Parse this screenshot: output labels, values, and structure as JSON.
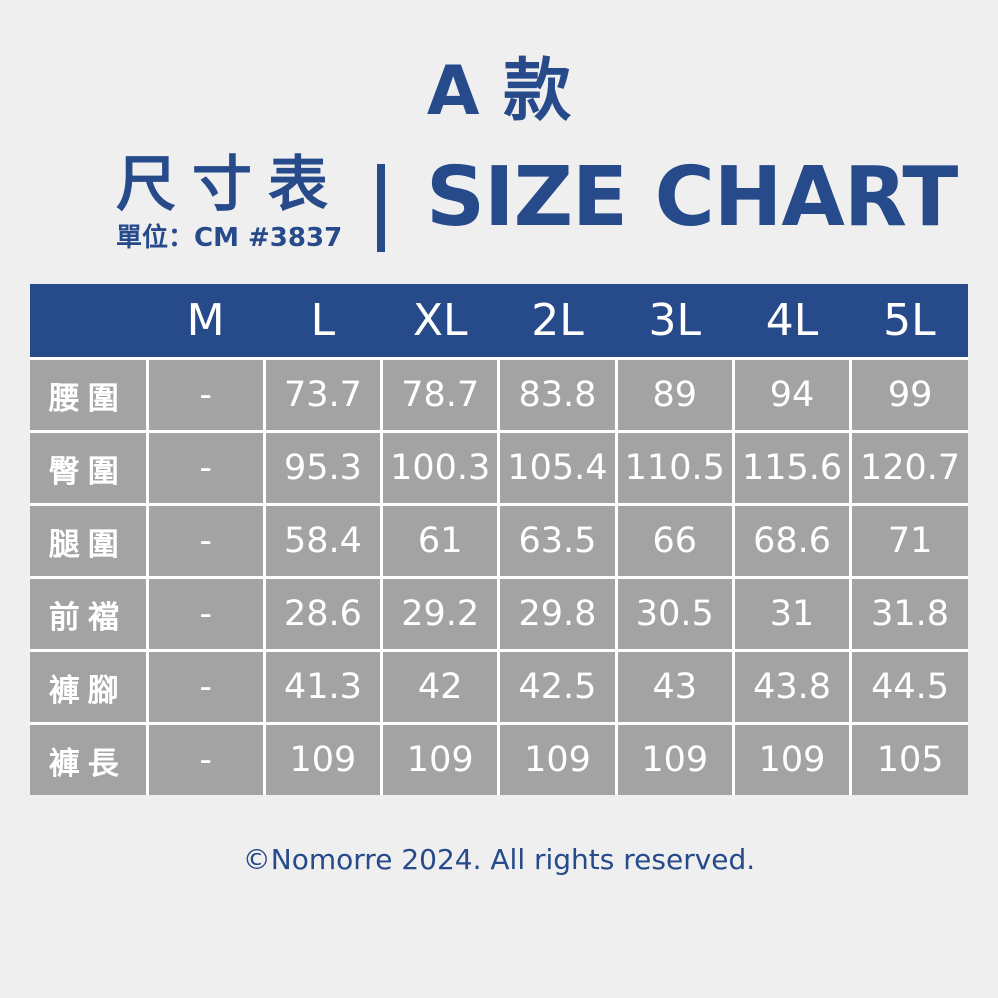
{
  "header": {
    "style_title": "A 款",
    "title_zh": "尺寸表",
    "divider": "|",
    "title_en": "SIZE CHART",
    "unit_line": "單位：CM #3837"
  },
  "table": {
    "columns": [
      "",
      "M",
      "L",
      "XL",
      "2L",
      "3L",
      "4L",
      "5L"
    ],
    "rows": [
      {
        "label": "腰圍",
        "values": [
          "-",
          "73.7",
          "78.7",
          "83.8",
          "89",
          "94",
          "99"
        ]
      },
      {
        "label": "臀圍",
        "values": [
          "-",
          "95.3",
          "100.3",
          "105.4",
          "110.5",
          "115.6",
          "120.7"
        ]
      },
      {
        "label": "腿圍",
        "values": [
          "-",
          "58.4",
          "61",
          "63.5",
          "66",
          "68.6",
          "71"
        ]
      },
      {
        "label": "前襠",
        "values": [
          "-",
          "28.6",
          "29.2",
          "29.8",
          "30.5",
          "31",
          "31.8"
        ]
      },
      {
        "label": "褲腳",
        "values": [
          "-",
          "41.3",
          "42",
          "42.5",
          "43",
          "43.8",
          "44.5"
        ]
      },
      {
        "label": "褲長",
        "values": [
          "-",
          "109",
          "109",
          "109",
          "109",
          "109",
          "105"
        ]
      }
    ]
  },
  "footer": {
    "copyright": "©Nomorre 2024. All rights reserved."
  },
  "colors": {
    "brand_blue": "#264a8a",
    "cell_gray": "#a3a3a3",
    "background": "#efeff0"
  }
}
